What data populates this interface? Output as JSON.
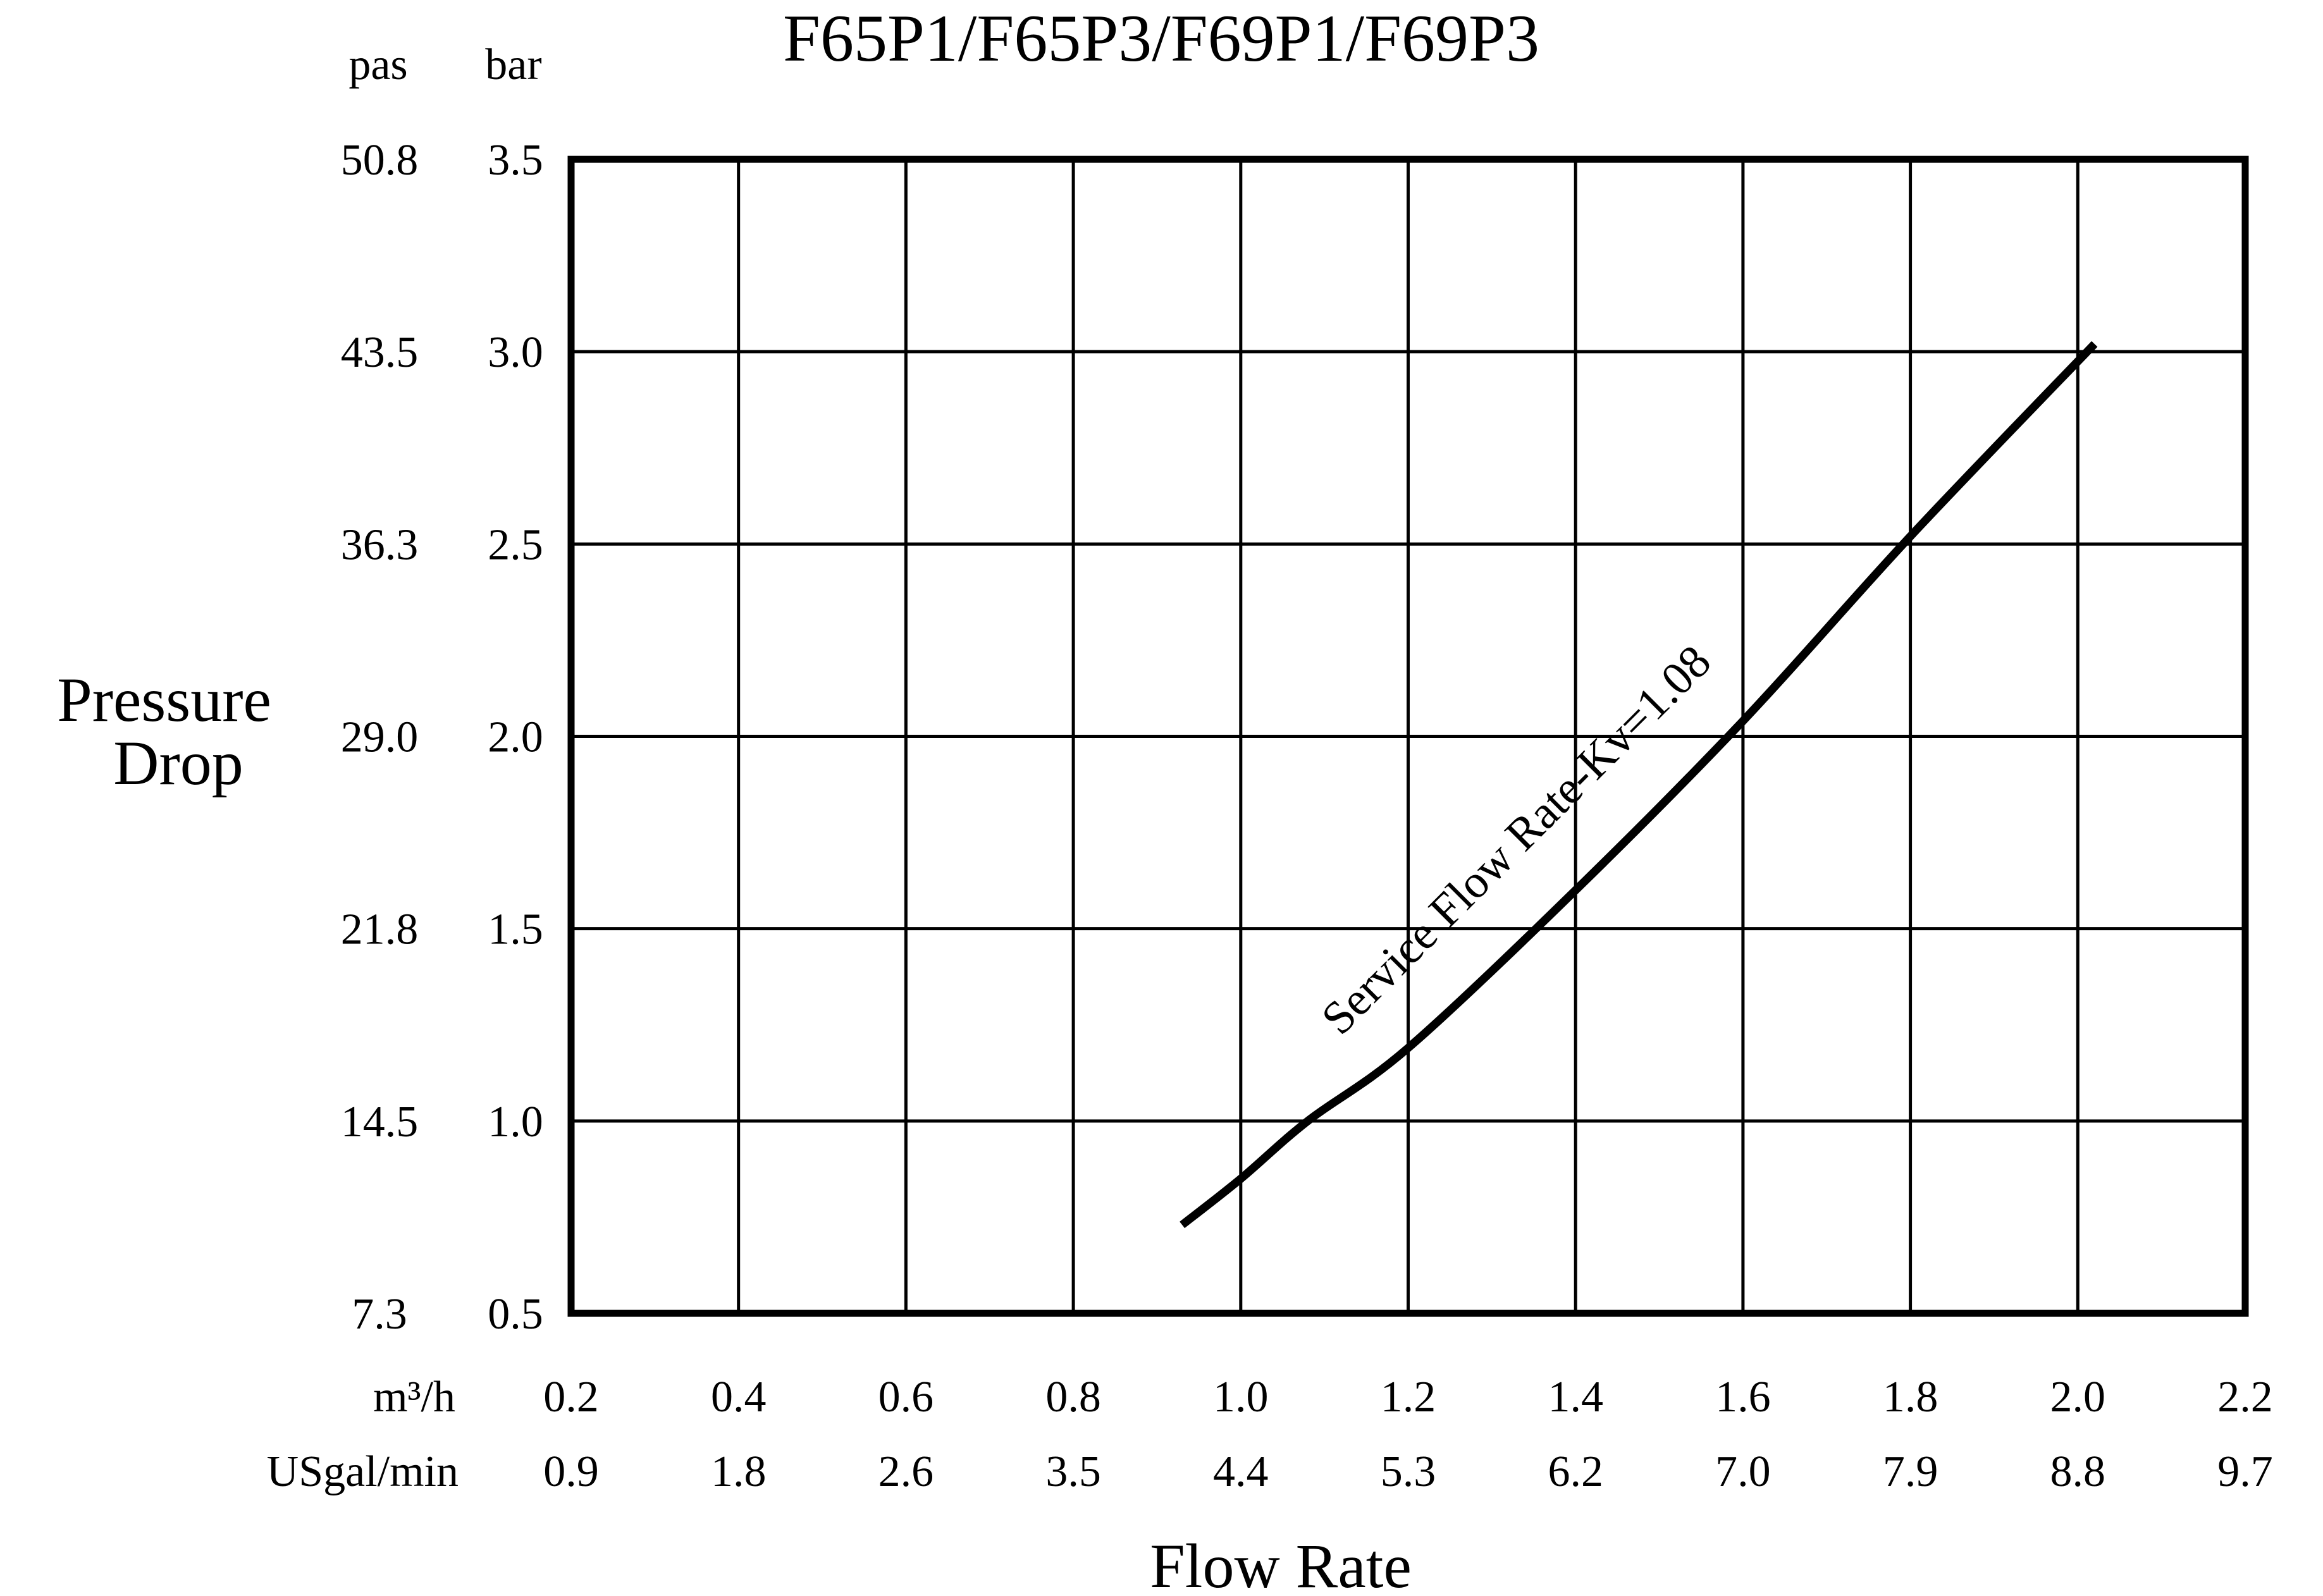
{
  "chart_data": {
    "type": "line",
    "title": "F65P1/F65P3/F69P1/F69P3",
    "xlabel": "Flow Rate",
    "ylabel": [
      "Pressure",
      "Drop"
    ],
    "y_unit_left": "pas",
    "y_unit_right": "bar",
    "x_unit_primary": "m³/h",
    "x_unit_secondary": "USgal/min",
    "x_ticks": [
      "0.2",
      "0.4",
      "0.6",
      "0.8",
      "1.0",
      "1.2",
      "1.4",
      "1.6",
      "1.8",
      "2.0",
      "2.2"
    ],
    "x_ticks_secondary": [
      "0.9",
      "1.8",
      "2.6",
      "3.5",
      "4.4",
      "5.3",
      "6.2",
      "7.0",
      "7.9",
      "8.8",
      "9.7"
    ],
    "y_ticks": [
      "0.5",
      "1.0",
      "1.5",
      "2.0",
      "2.5",
      "3.0",
      "3.5"
    ],
    "y_ticks_secondary": [
      "7.3",
      "14.5",
      "21.8",
      "29.0",
      "36.3",
      "43.5",
      "50.8"
    ],
    "xlim": [
      0.2,
      2.2
    ],
    "ylim": [
      0.5,
      3.5
    ],
    "grid": true,
    "series": [
      {
        "name": "Service Flow Rate-Kv=1.08",
        "x": [
          0.93,
          1.0,
          1.08,
          1.2,
          1.4,
          1.6,
          1.8,
          2.02
        ],
        "y": [
          0.73,
          0.85,
          1.0,
          1.19,
          1.6,
          2.04,
          2.52,
          3.02
        ]
      }
    ]
  }
}
